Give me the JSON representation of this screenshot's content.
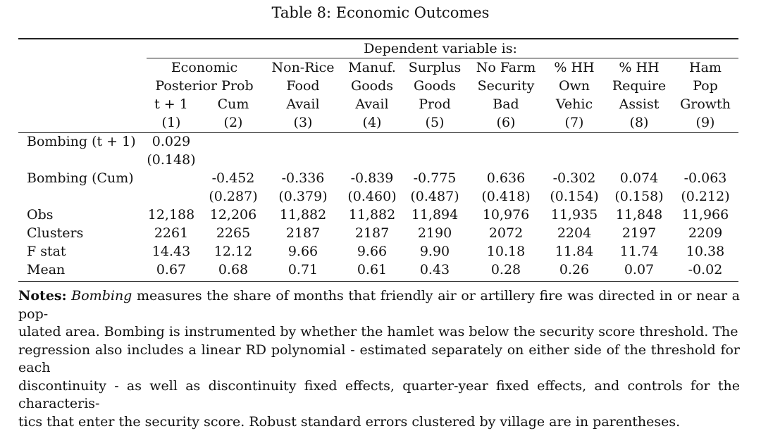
{
  "title": "Table 8: Economic Outcomes",
  "dep_var_header": "Dependent variable is:",
  "group_headers": [
    {
      "line1": "Economic",
      "line2": "Posterior Prob"
    }
  ],
  "columns": [
    {
      "l1": "",
      "l2": "",
      "l3": "t + 1",
      "num": "(1)"
    },
    {
      "l1": "",
      "l2": "",
      "l3": "Cum",
      "num": "(2)"
    },
    {
      "l1": "Non-Rice",
      "l2": "Food",
      "l3": "Avail",
      "num": "(3)"
    },
    {
      "l1": "Manuf.",
      "l2": "Goods",
      "l3": "Avail",
      "num": "(4)"
    },
    {
      "l1": "Surplus",
      "l2": "Goods",
      "l3": "Prod",
      "num": "(5)"
    },
    {
      "l1": "No Farm",
      "l2": "Security",
      "l3": "Bad",
      "num": "(6)"
    },
    {
      "l1": "% HH",
      "l2": "Own",
      "l3": "Vehic",
      "num": "(7)"
    },
    {
      "l1": "% HH",
      "l2": "Require",
      "l3": "Assist",
      "num": "(8)"
    },
    {
      "l1": "Ham",
      "l2": "Pop",
      "l3": "Growth",
      "num": "(9)"
    }
  ],
  "rows": [
    {
      "label": "Bombing (t + 1)",
      "values": [
        "0.029",
        "",
        "",
        "",
        "",
        "",
        "",
        "",
        ""
      ]
    },
    {
      "label": "",
      "values": [
        "(0.148)",
        "",
        "",
        "",
        "",
        "",
        "",
        "",
        ""
      ]
    },
    {
      "label": "Bombing (Cum)",
      "values": [
        "",
        "-0.452",
        "-0.336",
        "-0.839",
        "-0.775",
        "0.636",
        "-0.302",
        "0.074",
        "-0.063"
      ]
    },
    {
      "label": "",
      "values": [
        "",
        "(0.287)",
        "(0.379)",
        "(0.460)",
        "(0.487)",
        "(0.418)",
        "(0.154)",
        "(0.158)",
        "(0.212)"
      ]
    },
    {
      "label": "Obs",
      "values": [
        "12,188",
        "12,206",
        "11,882",
        "11,882",
        "11,894",
        "10,976",
        "11,935",
        "11,848",
        "11,966"
      ]
    },
    {
      "label": "Clusters",
      "values": [
        "2261",
        "2265",
        "2187",
        "2187",
        "2190",
        "2072",
        "2204",
        "2197",
        "2209"
      ]
    },
    {
      "label": "F stat",
      "values": [
        "14.43",
        "12.12",
        "9.66",
        "9.66",
        "9.90",
        "10.18",
        "11.84",
        "11.74",
        "10.38"
      ]
    },
    {
      "label": "Mean",
      "values": [
        "0.67",
        "0.68",
        "0.71",
        "0.61",
        "0.43",
        "0.28",
        "0.26",
        "0.07",
        "-0.02"
      ]
    }
  ],
  "notes": {
    "label": "Notes:",
    "bombing_word": "Bombing",
    "line1_rest": " measures the share of months that friendly air or artillery fire was directed in or near a pop-",
    "line2": "ulated area. Bombing is instrumented by whether the hamlet was below the security score threshold. The",
    "line3": "regression also includes a linear RD polynomial - estimated separately on either side of the threshold for each",
    "line4": "discontinuity - as well as discontinuity fixed effects, quarter-year fixed effects, and controls for the characteris-",
    "line5": "tics that enter the security score. Robust standard errors clustered by village are in parentheses."
  }
}
